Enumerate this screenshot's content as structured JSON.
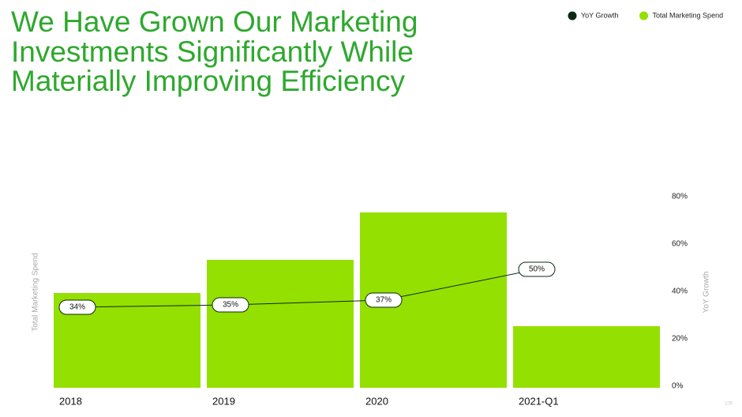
{
  "chart_data": {
    "type": "bar",
    "title_lines": [
      "We Have Grown Our Marketing",
      "Investments Significantly While",
      "Materially Improving Efficiency"
    ],
    "categories": [
      "2018",
      "2019",
      "2020",
      "2021-Q1"
    ],
    "series": [
      {
        "name": "YoY Growth",
        "type": "line",
        "color": "#0b2a13",
        "axis": "y2",
        "values": [
          34,
          35,
          37,
          50
        ],
        "value_labels": [
          "34%",
          "35%",
          "37%",
          "50%"
        ]
      },
      {
        "name": "Total Marketing Spend",
        "type": "bar",
        "color": "#94e000",
        "values": [
          40,
          54,
          74,
          26
        ]
      }
    ],
    "ylabel": "Total Marketing Spend",
    "ylim": [
      0,
      80
    ],
    "y2label": "YoY Growth",
    "y2lim": [
      0,
      80
    ],
    "y2ticks": [
      {
        "value": 0,
        "label": "0%"
      },
      {
        "value": 20,
        "label": "20%"
      },
      {
        "value": 40,
        "label": "40%"
      },
      {
        "value": 60,
        "label": "60%"
      },
      {
        "value": 80,
        "label": "80%"
      }
    ],
    "page_number": "105"
  }
}
